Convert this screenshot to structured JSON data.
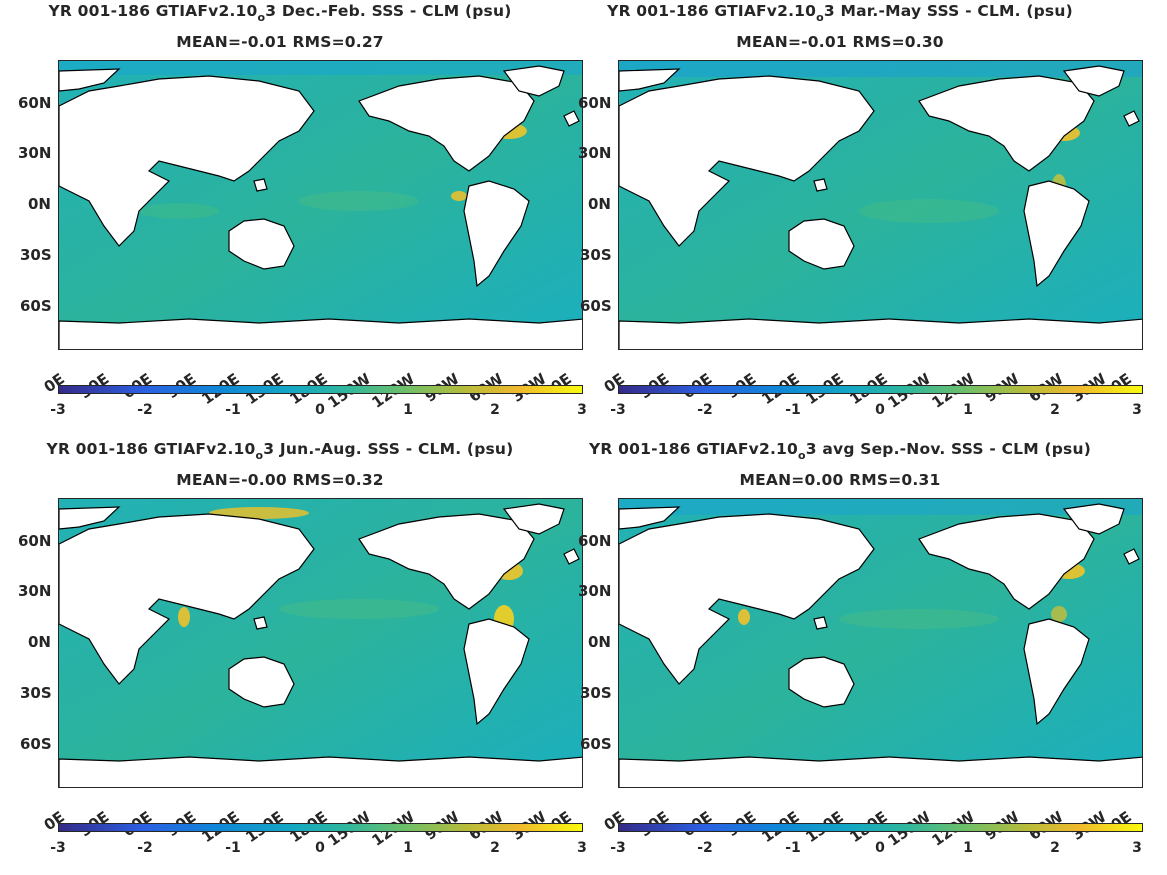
{
  "panels": [
    {
      "title": "YR 001-186 GTIAFv2.10",
      "subscript": "o",
      "title_tail": "3  Dec.-Feb. SSS - CLM (psu)",
      "stats": "MEAN=-0.01   RMS=0.27"
    },
    {
      "title": "YR 001-186 GTIAFv2.10",
      "subscript": "o",
      "title_tail": "3 Mar.-May SSS - CLM. (psu)",
      "stats": "MEAN=-0.01   RMS=0.30"
    },
    {
      "title": "YR 001-186 GTIAFv2.10",
      "subscript": "o",
      "title_tail": "3 Jun.-Aug. SSS - CLM. (psu)",
      "stats": "MEAN=-0.00   RMS=0.32"
    },
    {
      "title": "YR 001-186 GTIAFv2.10",
      "subscript": "o",
      "title_tail": "3 avg Sep.-Nov. SSS - CLM (psu)",
      "stats": "MEAN=0.00   RMS=0.31"
    }
  ],
  "lat_ticks": [
    "60N",
    "30N",
    "0N",
    "30S",
    "60S"
  ],
  "lon_ticks": [
    "0E",
    "30E",
    "60E",
    "90E",
    "120E",
    "150E",
    "180E",
    "150W",
    "120W",
    "90W",
    "60W",
    "30W",
    "0E"
  ],
  "colorbar_ticks": [
    "-3",
    "-2",
    "-1",
    "0",
    "1",
    "2",
    "3"
  ],
  "colormap": {
    "name": "parula",
    "low": "#352a87",
    "mid": "#15a8c2",
    "high": "#f9fb0e",
    "ocean": "#1eb0b4"
  }
}
